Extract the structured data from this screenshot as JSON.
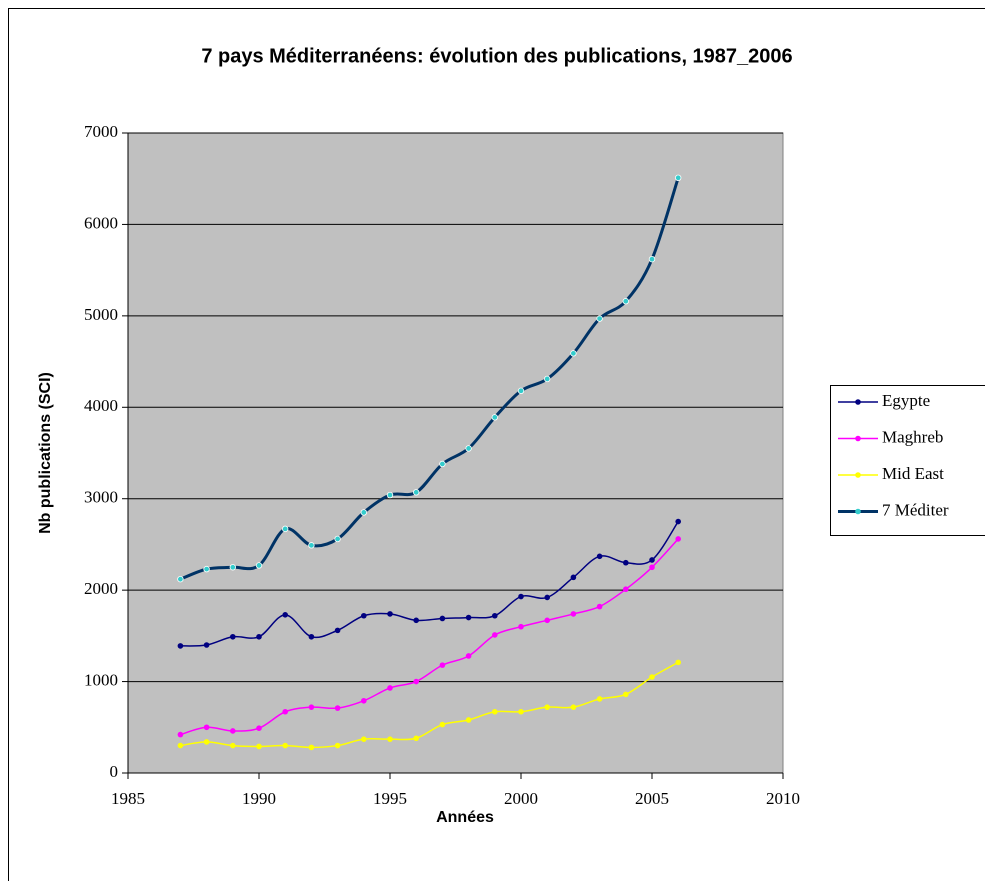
{
  "chart_data": {
    "type": "line",
    "title": "7 pays Méditerranéens: évolution des publications, 1987_2006",
    "x_label": "Années",
    "y_label": "Nb publications (SCI)",
    "x": [
      1987,
      1988,
      1989,
      1990,
      1991,
      1992,
      1993,
      1994,
      1995,
      1996,
      1997,
      1998,
      1999,
      2000,
      2001,
      2002,
      2003,
      2004,
      2005,
      2006
    ],
    "series": [
      {
        "name": "Egypte",
        "color": "#000080",
        "marker_color": "#000080",
        "line_width": 1.5,
        "values": [
          1390,
          1400,
          1490,
          1490,
          1730,
          1490,
          1560,
          1720,
          1740,
          1670,
          1690,
          1700,
          1720,
          1930,
          1920,
          2140,
          2370,
          2300,
          2330,
          2750
        ]
      },
      {
        "name": "Maghreb",
        "color": "#FF00FF",
        "marker_color": "#FF00FF",
        "line_width": 1.5,
        "values": [
          420,
          500,
          460,
          490,
          670,
          720,
          710,
          790,
          930,
          1000,
          1180,
          1280,
          1510,
          1600,
          1670,
          1740,
          1820,
          2010,
          2250,
          2560
        ]
      },
      {
        "name": "Mid East",
        "color": "#FFFF00",
        "marker_color": "#FFFF00",
        "line_width": 1.5,
        "values": [
          300,
          340,
          300,
          290,
          300,
          280,
          300,
          370,
          370,
          380,
          530,
          580,
          670,
          670,
          720,
          720,
          810,
          860,
          1050,
          1210
        ]
      },
      {
        "name": "7 Méditer",
        "color": "#003366",
        "marker_color": "#33CCCC",
        "line_width": 3,
        "values": [
          2120,
          2230,
          2250,
          2270,
          2670,
          2490,
          2560,
          2850,
          3040,
          3070,
          3380,
          3550,
          3890,
          4180,
          4310,
          4590,
          4970,
          5160,
          5620,
          6510
        ]
      }
    ],
    "xlim": [
      1985,
      2010
    ],
    "xticks": [
      1985,
      1990,
      1995,
      2000,
      2005,
      2010
    ],
    "ylim": [
      0,
      7000
    ],
    "yticks": [
      0,
      1000,
      2000,
      3000,
      4000,
      5000,
      6000,
      7000
    ],
    "grid": true,
    "smooth": true,
    "legend": "right"
  }
}
